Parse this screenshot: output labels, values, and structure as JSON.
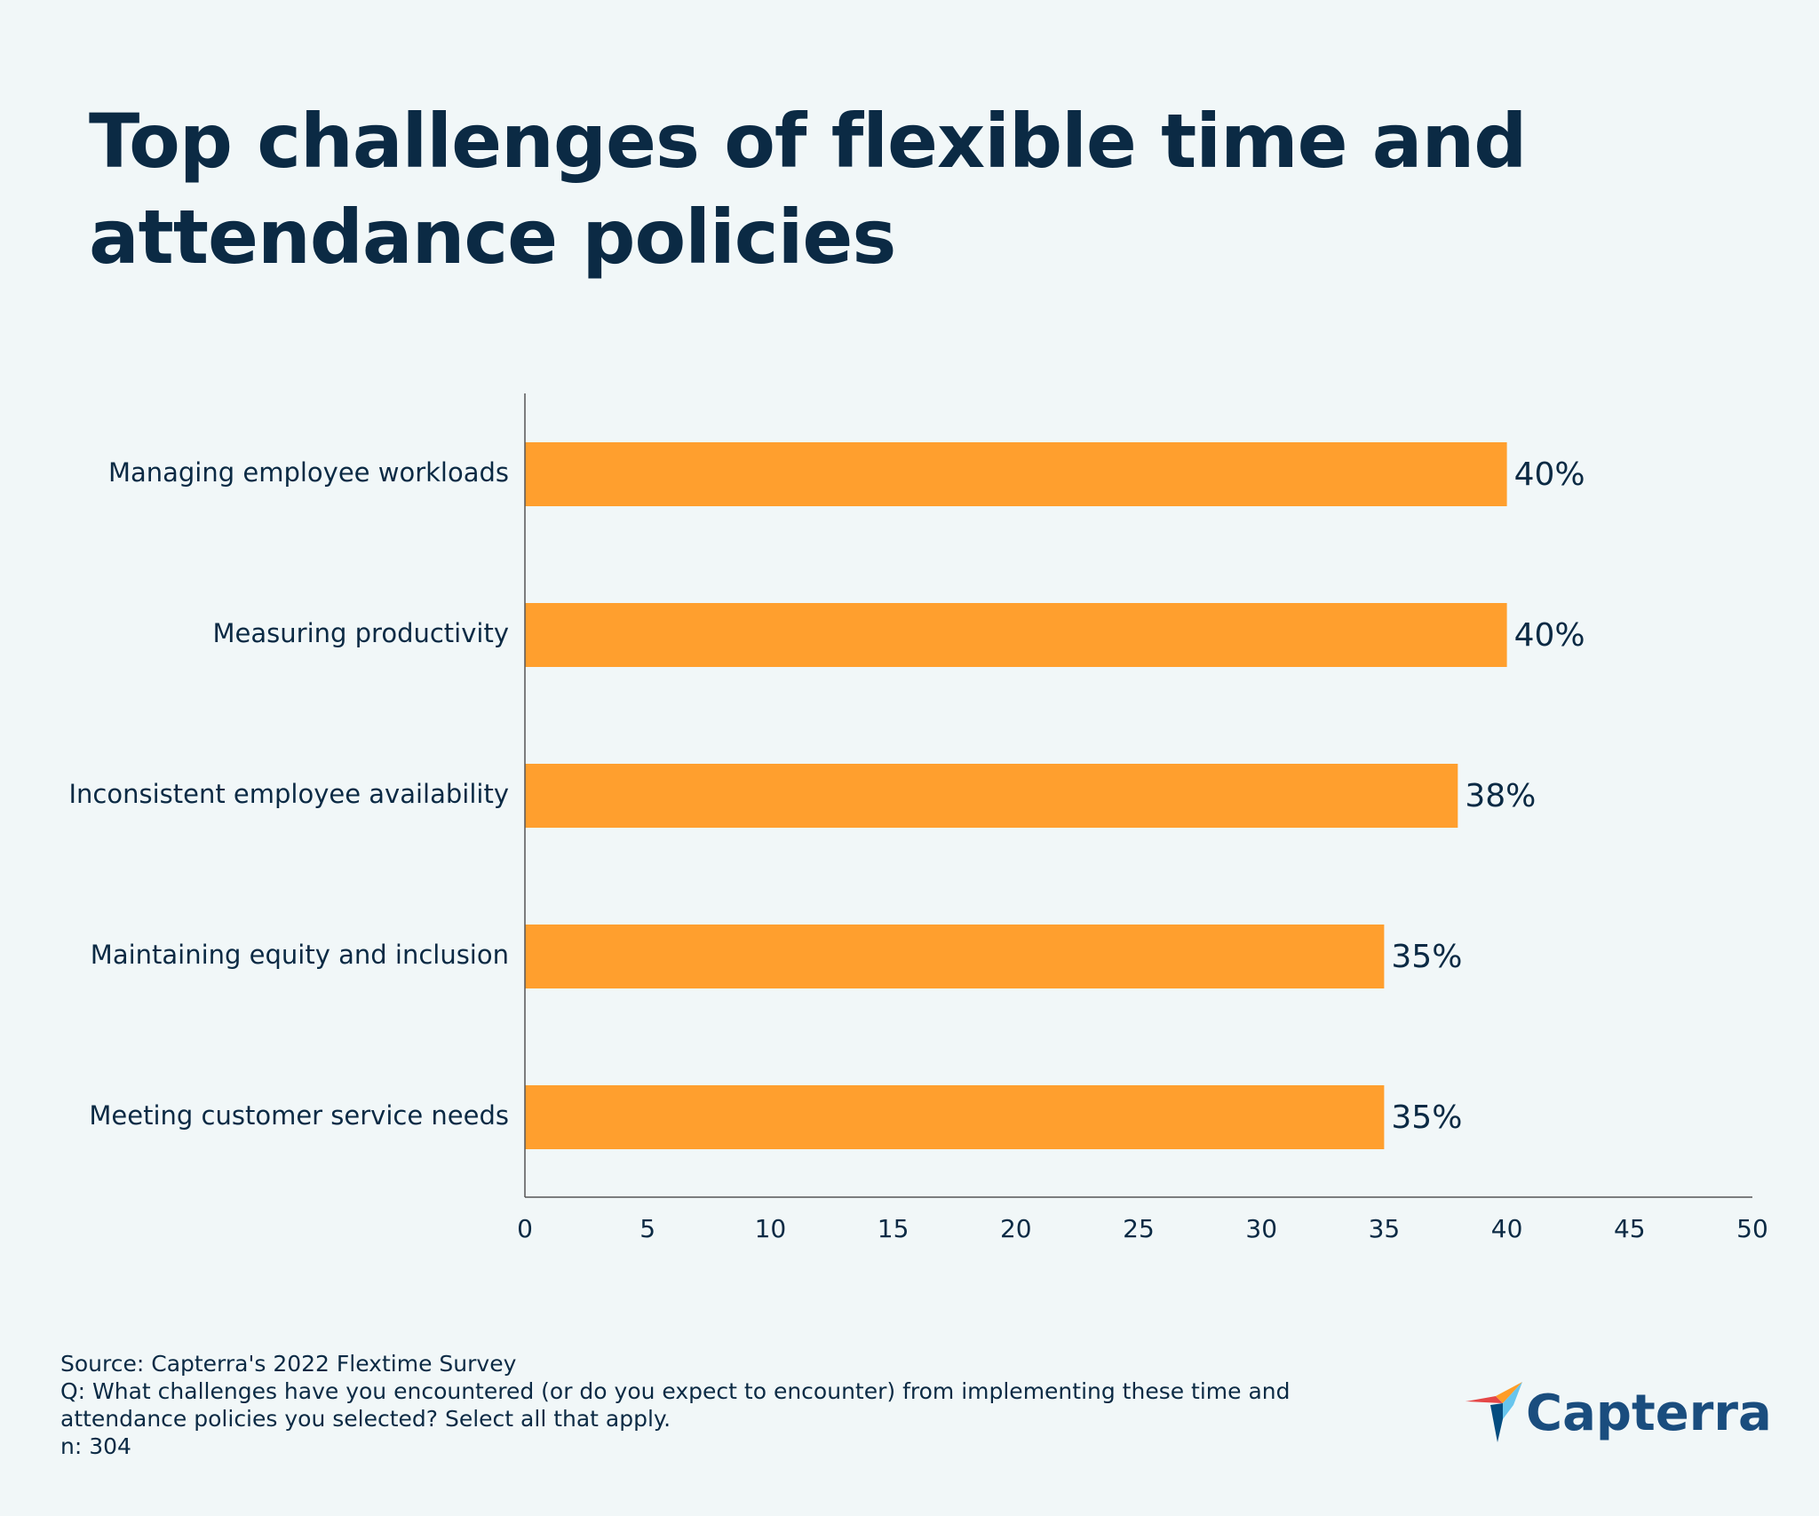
{
  "title": "Top challenges of flexible time and attendance policies",
  "chart_data": {
    "type": "bar",
    "orientation": "horizontal",
    "title": "Top challenges of flexible time and attendance policies",
    "categories": [
      "Managing employee workloads",
      "Measuring productivity",
      "Inconsistent employee availability",
      "Maintaining equity and inclusion",
      "Meeting customer service needs"
    ],
    "values": [
      40,
      40,
      38,
      35,
      35
    ],
    "value_labels": [
      "40%",
      "40%",
      "38%",
      "35%",
      "35%"
    ],
    "xlim": [
      0,
      50
    ],
    "xticks": [
      "0",
      "5",
      "10",
      "15",
      "20",
      "25",
      "30",
      "35",
      "40",
      "45",
      "50"
    ],
    "xlabel": "",
    "ylabel": "",
    "bar_color": "#ff9f2e",
    "axis_color": "#555555",
    "grid": false
  },
  "footer": {
    "source": "Source: Capterra's 2022 Flextime Survey",
    "question_line1": "Q: What challenges have you encountered (or do you expect to encounter) from implementing these time and",
    "question_line2": "attendance policies you selected? Select all that apply.",
    "n": "n: 304"
  },
  "logo": {
    "text": "Capterra",
    "icon": "capterra-arrow-icon",
    "colors": [
      "#ff9d28",
      "#68c5ed",
      "#044d80",
      "#e54747"
    ]
  }
}
